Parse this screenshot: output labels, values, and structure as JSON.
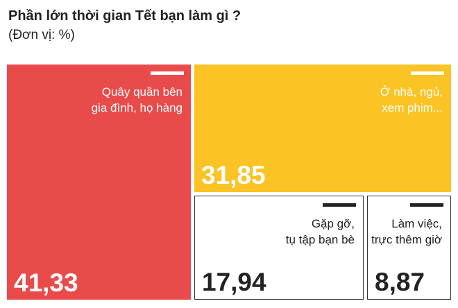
{
  "title": "Phần lớn thời gian Tết bạn làm gì ?",
  "subtitle": "(Đơn vị: %)",
  "colors": {
    "red": "#e94b4b",
    "yellow": "#fbc323",
    "white": "#ffffff",
    "text_dark": "#222222",
    "border": "#333333"
  },
  "chart_data": {
    "type": "treemap",
    "title": "Phần lớn thời gian Tết bạn làm gì ?",
    "subtitle": "(Đơn vị: %)",
    "unit": "%",
    "items": [
      {
        "label": "Quây quần bên\ngia đình, họ hàng",
        "value": 41.33,
        "value_text": "41,33",
        "color": "#e94b4b",
        "text_color": "#ffffff"
      },
      {
        "label": "Ở nhà, ngủ,\nxem phim...",
        "value": 31.85,
        "value_text": "31,85",
        "color": "#fbc323",
        "text_color": "#ffffff"
      },
      {
        "label": "Gặp gỡ,\ntụ tập bạn bè",
        "value": 17.94,
        "value_text": "17,94",
        "color": "#ffffff",
        "text_color": "#222222"
      },
      {
        "label": "Làm việc,\ntrực thêm giờ",
        "value": 8.87,
        "value_text": "8,87",
        "color": "#ffffff",
        "text_color": "#222222"
      }
    ]
  }
}
